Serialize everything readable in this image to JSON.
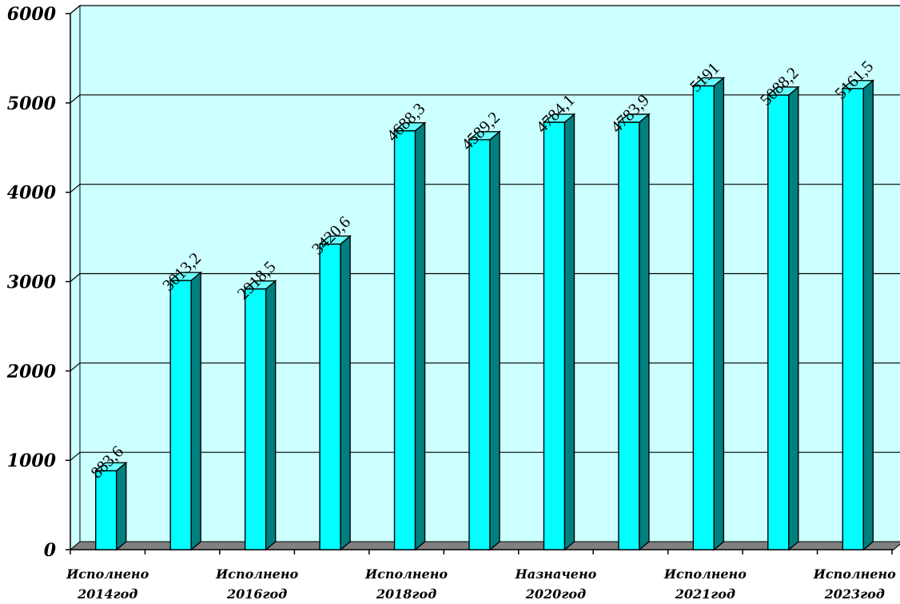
{
  "chart_data": {
    "type": "bar",
    "title": "",
    "xlabel": "",
    "ylabel": "",
    "ylim": [
      0,
      6000
    ],
    "yticks": [
      0,
      1000,
      2000,
      3000,
      4000,
      5000,
      6000
    ],
    "grid": true,
    "legend": "none",
    "categories": [
      "Исполнено 2014год",
      "",
      "Исполнено 2016год",
      "",
      "Исполнено 2018год",
      "",
      "Назначено 2020год",
      "",
      "Исполнено 2021год",
      "",
      "Исполнено 2023год"
    ],
    "category_label_lines": [
      [
        "Исполнено",
        "2014год"
      ],
      [],
      [
        "Исполнено",
        "2016год"
      ],
      [],
      [
        "Исполнено",
        "2018год"
      ],
      [],
      [
        "Назначено",
        "2020год"
      ],
      [],
      [
        "Исполнено",
        "2021год"
      ],
      [],
      [
        "Исполнено",
        "2023год"
      ]
    ],
    "values": [
      883.6,
      3013.2,
      2918.5,
      3420.6,
      4688.3,
      4589.2,
      4784.1,
      4783.9,
      5191,
      5088.2,
      5161.5
    ],
    "data_labels": [
      "883,6",
      "3013,2",
      "2918,5",
      "3420,6",
      "4688,3",
      "4589,2",
      "4784,1",
      "4783,9",
      "5191",
      "5088,2",
      "5161,5"
    ]
  },
  "colors": {
    "plot_background": "#ccffff",
    "bar_front": "#00ffff",
    "bar_side": "#008080",
    "bar_top": "#66ffff",
    "floor": "#808080",
    "gridline": "#000000"
  }
}
